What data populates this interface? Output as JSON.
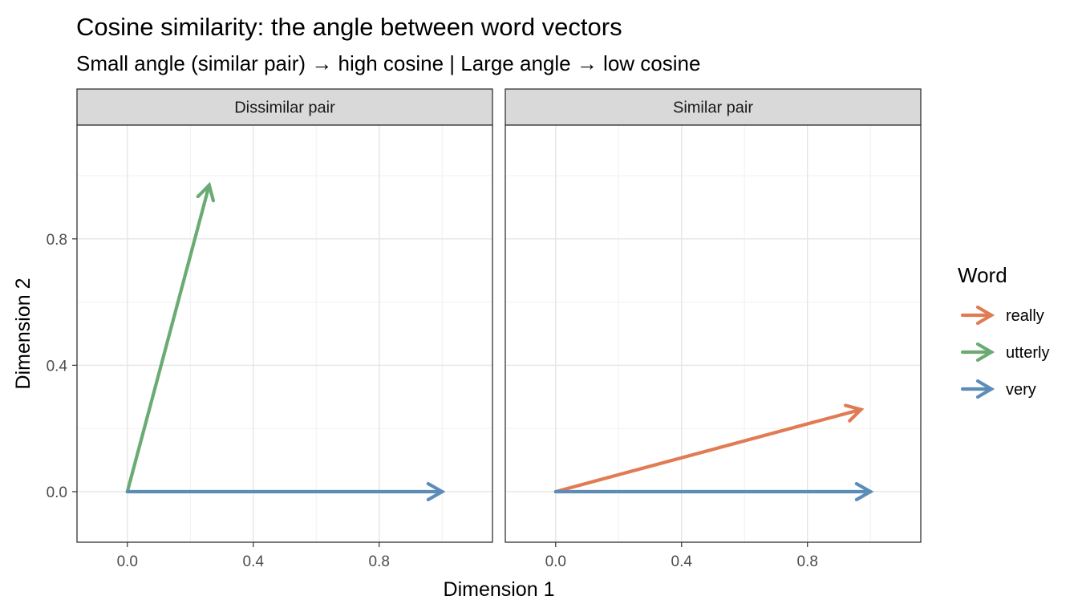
{
  "title": "Cosine similarity: the angle between word vectors",
  "subtitle": "Small angle (similar pair) → high cosine | Large angle → low cosine",
  "chart_data": {
    "type": "vector-facet",
    "xlabel": "Dimension 1",
    "ylabel": "Dimension 2",
    "xlim": [
      -0.16,
      1.16
    ],
    "ylim": [
      -0.16,
      1.16
    ],
    "x_ticks": [
      "0.0",
      "0.4",
      "0.8"
    ],
    "y_ticks": [
      "0.0",
      "0.4",
      "0.8"
    ],
    "grid": true,
    "legend": {
      "title": "Word",
      "position": "right",
      "items": [
        {
          "label": "really",
          "color": "#E07B54"
        },
        {
          "label": "utterly",
          "color": "#6AAB73"
        },
        {
          "label": "very",
          "color": "#5B8DB8"
        }
      ]
    },
    "panels": [
      {
        "label": "Dissimilar pair",
        "vectors": [
          {
            "word": "utterly",
            "x0": 0,
            "y0": 0,
            "x1": 0.26,
            "y1": 0.97,
            "color": "#6AAB73"
          },
          {
            "word": "very",
            "x0": 0,
            "y0": 0,
            "x1": 1.0,
            "y1": 0.0,
            "color": "#5B8DB8"
          }
        ]
      },
      {
        "label": "Similar pair",
        "vectors": [
          {
            "word": "really",
            "x0": 0,
            "y0": 0,
            "x1": 0.97,
            "y1": 0.26,
            "color": "#E07B54"
          },
          {
            "word": "very",
            "x0": 0,
            "y0": 0,
            "x1": 1.0,
            "y1": 0.0,
            "color": "#5B8DB8"
          }
        ]
      }
    ]
  }
}
